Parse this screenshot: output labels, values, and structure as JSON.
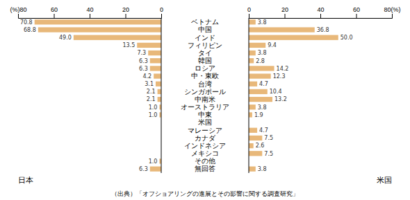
{
  "chart_data": [
    {
      "type": "bar",
      "orientation": "horizontal",
      "xlabel": "日本",
      "categories": [
        "ベトナム",
        "中国",
        "インド",
        "フィリピン",
        "タイ",
        "韓国",
        "ロシア",
        "中・東欧",
        "台湾",
        "シンガポール",
        "中南米",
        "オーストラリア",
        "中東",
        "米国",
        "マレーシア",
        "カナダ",
        "インドネシア",
        "メキシコ",
        "その他",
        "無回答"
      ],
      "values": [
        70.8,
        68.8,
        49.0,
        13.5,
        7.3,
        6.3,
        6.3,
        4.2,
        3.1,
        2.1,
        2.1,
        1.0,
        1.0,
        0.0,
        0.0,
        0.0,
        0.0,
        0.0,
        1.0,
        6.3
      ],
      "value_labels": [
        "70.8",
        "68.8",
        "49.0",
        "13.5",
        "7.3",
        "6.3",
        "6.3",
        "4.2",
        "3.1",
        "2.1",
        "2.1",
        "1.0",
        "1.0",
        null,
        null,
        null,
        null,
        null,
        "1.0",
        "6.3"
      ],
      "data_labels": true,
      "color": "#e8b87a",
      "xlim": [
        80,
        0
      ],
      "xticks": [
        0,
        20,
        40,
        60,
        {
          "value": 80,
          "label": "(%)80"
        }
      ],
      "annotations": [
        "（出典）「オフショアリングの進展とその影響に関する調査研究」"
      ]
    },
    {
      "type": "bar",
      "orientation": "horizontal",
      "xlabel": "米国",
      "categories": [
        "ベトナム",
        "中国",
        "インド",
        "フィリピン",
        "タイ",
        "韓国",
        "ロシア",
        "中・東欧",
        "台湾",
        "シンガポール",
        "中南米",
        "オーストラリア",
        "中東",
        "米国",
        "マレーシア",
        "カナダ",
        "インドネシア",
        "メキシコ",
        "その他",
        "無回答"
      ],
      "values": [
        3.8,
        36.8,
        50.0,
        9.4,
        3.8,
        2.8,
        14.2,
        12.3,
        4.7,
        10.4,
        13.2,
        3.8,
        1.9,
        0.0,
        4.7,
        7.5,
        2.6,
        7.5,
        0.0,
        3.8
      ],
      "value_labels": [
        "3.8",
        "36.8",
        "50.0",
        "9.4",
        "3.8",
        "2.8",
        "14.2",
        "12.3",
        "4.7",
        "10.4",
        "13.2",
        "3.8",
        "1.9",
        null,
        "4.7",
        "7.5",
        "2.6",
        "7.5",
        null,
        "3.8"
      ],
      "data_labels": true,
      "color": "#e8b87a",
      "xlim": [
        0,
        80
      ],
      "xticks": [
        0,
        20,
        40,
        60,
        {
          "value": 80,
          "label": "80(%)"
        }
      ]
    }
  ]
}
